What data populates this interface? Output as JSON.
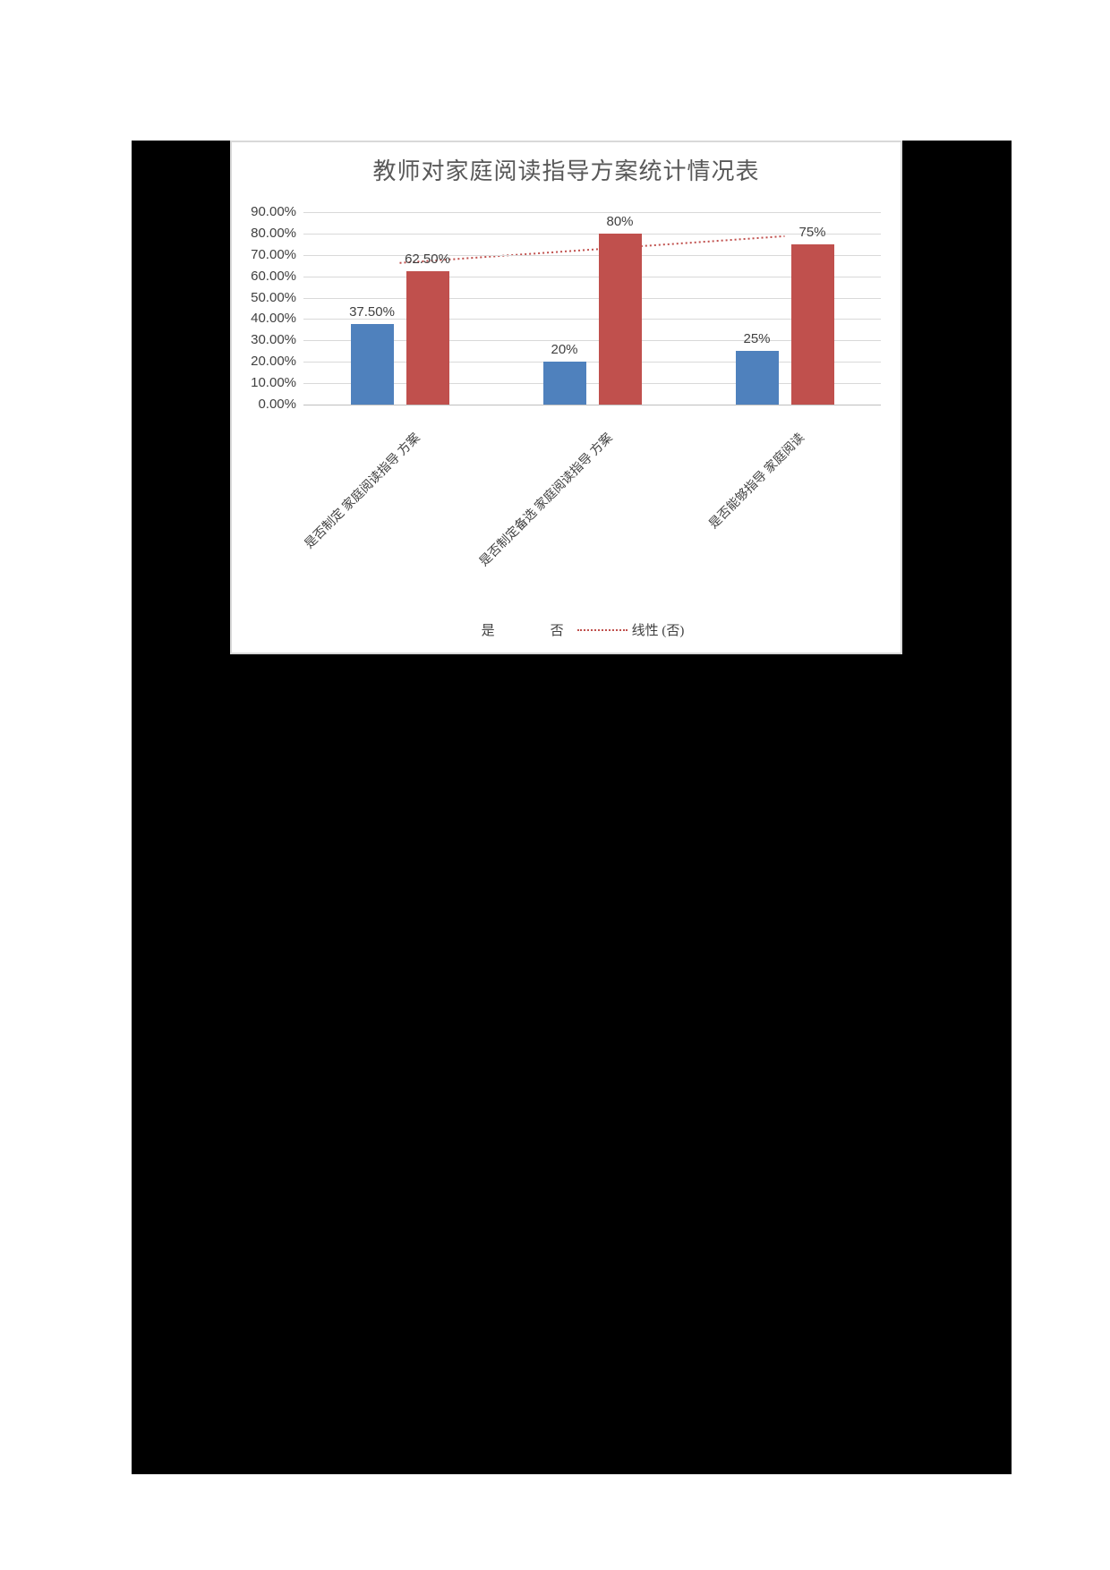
{
  "page": {
    "background": "#ffffff"
  },
  "figure": {
    "background": "#000000",
    "border": "none"
  },
  "chart": {
    "panel_background": "#ffffff",
    "panel_border_color": "#d9d9d9",
    "gridline_color": "#d9d9d9",
    "axis_line_color": "#bfbfbf",
    "text_color": "#404040",
    "title_color": "#595959"
  },
  "chart_data": {
    "type": "bar",
    "title": "教师对家庭阅读指导方案统计情况表",
    "categories": [
      "是否制定 家庭阅读指导 方案",
      "是否制定备选 家庭阅读指导 方案",
      "是否能够指导 家庭阅读"
    ],
    "series": [
      {
        "name": "是",
        "color": "#4f81bd",
        "values": [
          37.5,
          20,
          25
        ],
        "labels": [
          "37.50%",
          "20%",
          "25%"
        ]
      },
      {
        "name": "否",
        "color": "#c0504d",
        "values": [
          62.5,
          80,
          75
        ],
        "labels": [
          "62.50%",
          "80%",
          "75%"
        ]
      }
    ],
    "trendline": {
      "name": "线性 (否)",
      "series": "否",
      "style": "dotted",
      "color": "#c0504d"
    },
    "y_axis": {
      "min": 0,
      "max": 90,
      "step": 10,
      "tick_labels": [
        "0.00%",
        "10.00%",
        "20.00%",
        "30.00%",
        "40.00%",
        "50.00%",
        "60.00%",
        "70.00%",
        "80.00%",
        "90.00%"
      ]
    },
    "grid": true,
    "legend_position": "bottom",
    "xlabel": "",
    "ylabel": ""
  }
}
